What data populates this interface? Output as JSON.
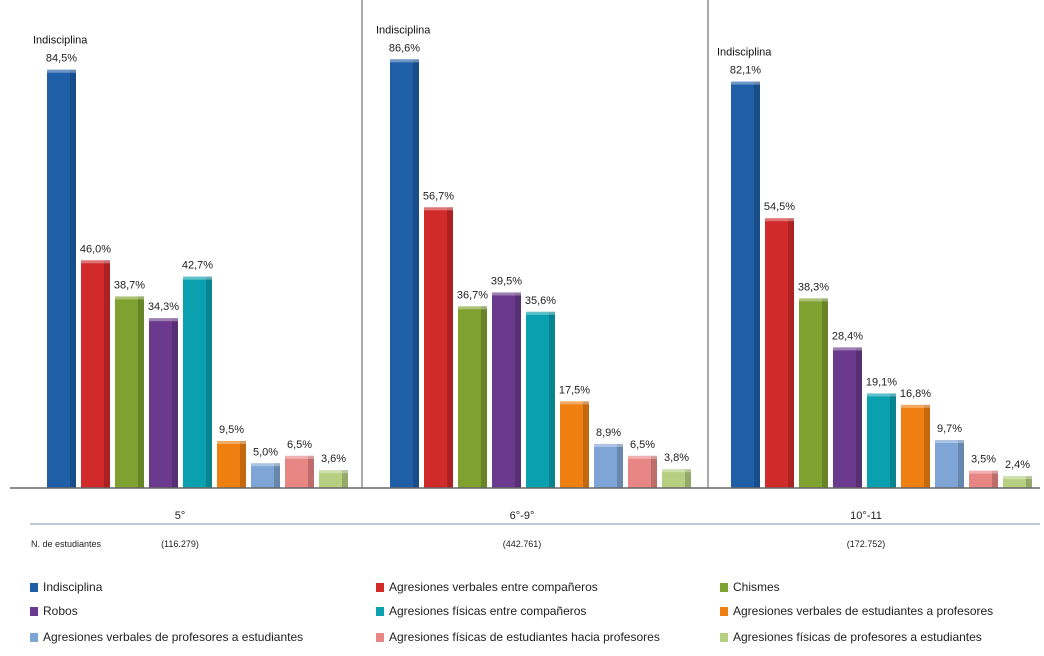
{
  "chart_data": {
    "type": "bar",
    "categories": [
      "5°",
      "6°-9°",
      "10°-11"
    ],
    "student_counts": [
      "(116.279)",
      "(442.761)",
      "(172.752)"
    ],
    "student_count_label": "N. de estudiantes",
    "highlight_label": "Indisciplina",
    "ylim": [
      0,
      100
    ],
    "grid": false,
    "legend_position": "bottom",
    "series": [
      {
        "name": "Indisciplina",
        "color": "#1f5fa8",
        "values": [
          84.5,
          86.6,
          82.1
        ],
        "labels": [
          "84,5%",
          "86,6%",
          "82,1%"
        ]
      },
      {
        "name": "Agresiones verbales entre compañeros",
        "color": "#d02a2a",
        "values": [
          46.0,
          56.7,
          54.5
        ],
        "labels": [
          "46,0%",
          "56,7%",
          "54,5%"
        ]
      },
      {
        "name": "Chismes",
        "color": "#7ea12f",
        "values": [
          38.7,
          36.7,
          38.3
        ],
        "labels": [
          "38,7%",
          "36,7%",
          "38,3%"
        ]
      },
      {
        "name": "Robos",
        "color": "#6b3a8e",
        "values": [
          34.3,
          39.5,
          28.4
        ],
        "labels": [
          "34,3%",
          "39,5%",
          "28,4%"
        ]
      },
      {
        "name": "Agresiones físicas entre compañeros",
        "color": "#0aa0b0",
        "values": [
          42.7,
          35.6,
          19.1
        ],
        "labels": [
          "42,7%",
          "35,6%",
          "19,1%"
        ]
      },
      {
        "name": "Agresiones verbales de estudiantes a profesores",
        "color": "#f07f12",
        "values": [
          9.5,
          17.5,
          16.8
        ],
        "labels": [
          "9,5%",
          "17,5%",
          "16,8%"
        ]
      },
      {
        "name": "Agresiones verbales de profesores a estudiantes",
        "color": "#7fa5d6",
        "values": [
          5.0,
          8.9,
          9.7
        ],
        "labels": [
          "5,0%",
          "8,9%",
          "9,7%"
        ]
      },
      {
        "name": "Agresiones físicas de estudiantes hacia profesores",
        "color": "#e88686",
        "values": [
          6.5,
          6.5,
          3.5
        ],
        "labels": [
          "6,5%",
          "6,5%",
          "3,5%"
        ]
      },
      {
        "name": "Agresiones físicas de profesores a estudiantes",
        "color": "#b6cf80",
        "values": [
          3.6,
          3.8,
          2.4
        ],
        "labels": [
          "3,6%",
          "3,8%",
          "2,4%"
        ]
      }
    ]
  }
}
